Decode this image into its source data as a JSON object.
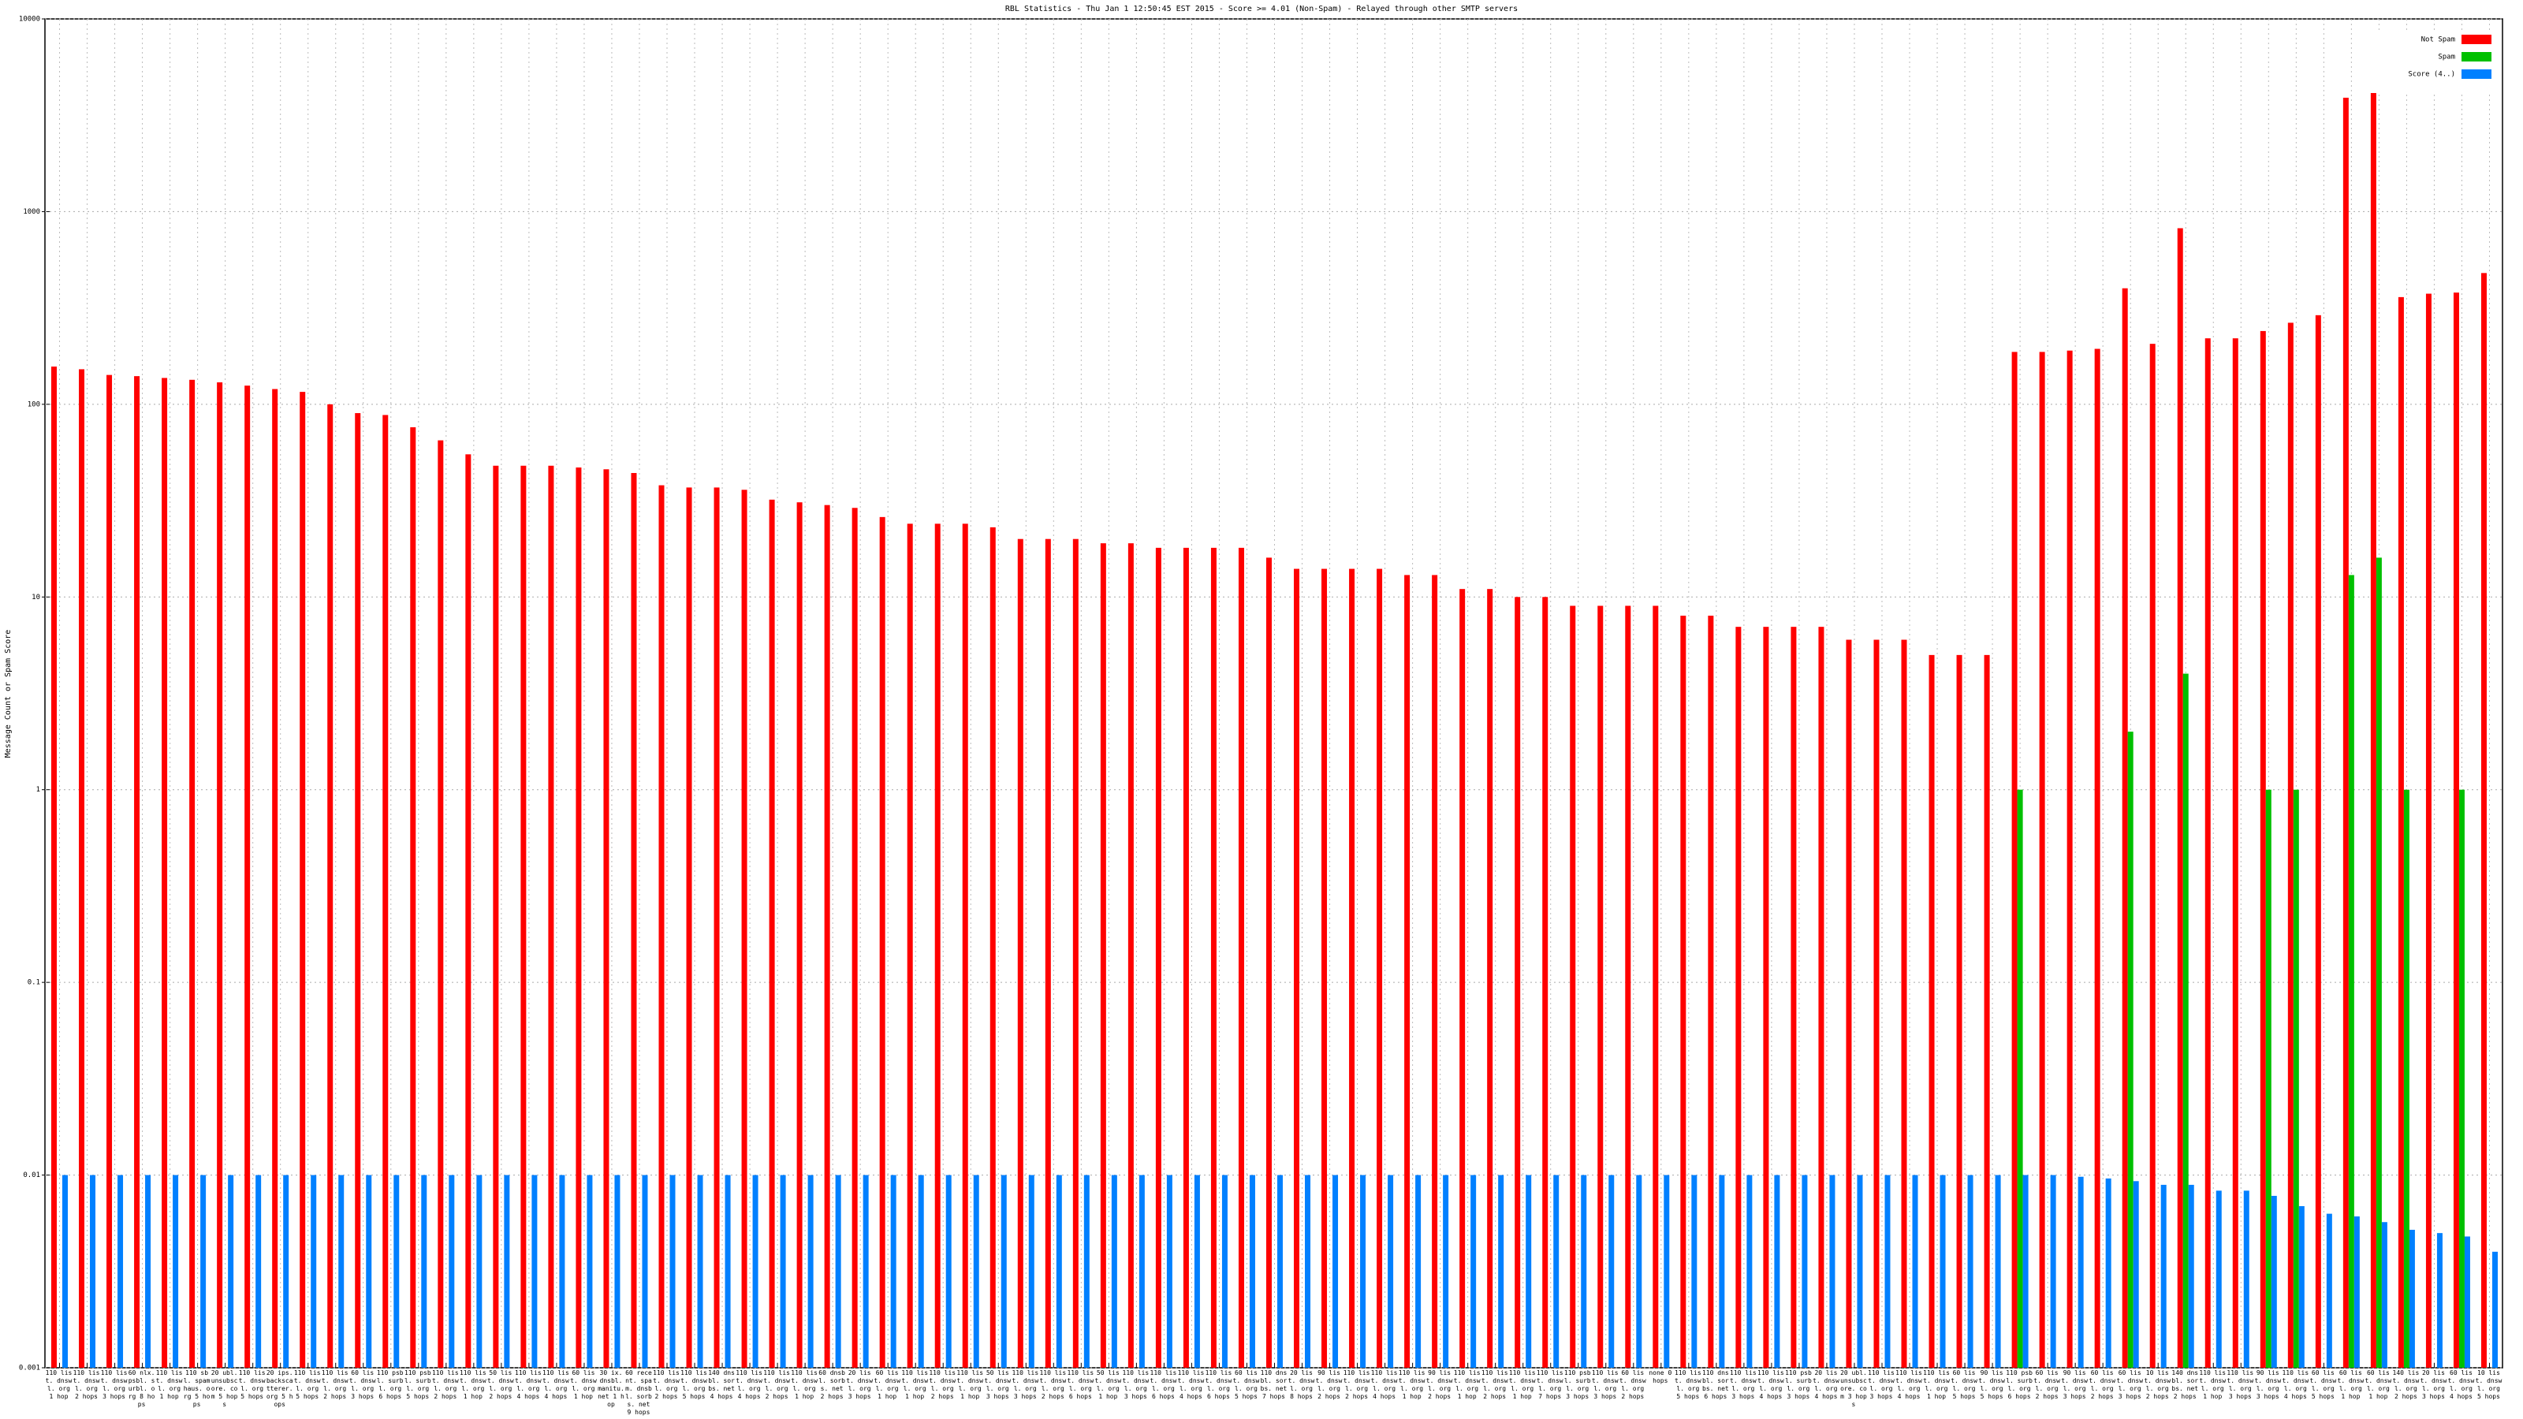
{
  "chart_data": {
    "type": "bar",
    "title": "RBL Statistics - Thu Jan  1 12:50:45 EST 2015 - Score >= 4.01 (Non-Spam) - Relayed through other SMTP servers",
    "y_label": "Message Count or Spam Score",
    "log": true,
    "grid": true,
    "legend": "top-right",
    "ylim": [
      0.001,
      10000
    ],
    "yticks": [
      0.001,
      0.01,
      0.1,
      1,
      10,
      100,
      1000,
      10000
    ],
    "categories": [
      "110 list. dnswl. org 1 hop",
      "110 list. dnswl. org 2 hops",
      "110 list. dnswl. org 3 hops",
      "60 nlx. psbl. surbl. org 8 hops",
      "110 list. dnswl. org 1 hop",
      "110 sbl. spamhaus. org 5 hops",
      "20 ubl. unsubscore. com 5 hops",
      "110 list. dnswl. org 5 hops",
      "20 ips. backscatterer. org 5 hops",
      "110 list. dnswl. org 5 hops",
      "110 list. dnswl. org 2 hops",
      "60 list. dnswl. org 3 hops",
      "110 psbl. surbl. org 6 hops",
      "110 psbl. surbl. org 5 hops",
      "110 list. dnswl. org 2 hops",
      "110 list. dnswl. org 1 hop",
      "50 list. dnswl. org 2 hops",
      "110 list. dnswl. org 4 hops",
      "110 list. dnswl. org 4 hops",
      "60 list. dnswl. org 1 hop",
      "30 ix. dnsbl. manitu. net 1 hop",
      "60 recent. spam. dnsbl. sorbs. net 9 hops",
      "110 list. dnswl. org 2 hops",
      "110 list. dnswl. org 5 hops",
      "140 dnsbl. sorbs. net 4 hops",
      "110 list. dnswl. org 4 hops",
      "110 list. dnswl. org 2 hops",
      "110 list. dnswl. org 1 hop",
      "60 dnsbl. sorbs. net 2 hops",
      "20 list. dnswl. org 3 hops",
      "60 list. dnswl. org 1 hop",
      "110 list. dnswl. org 1 hop",
      "110 list. dnswl. org 2 hops",
      "110 list. dnswl. org 1 hop",
      "50 list. dnswl. org 3 hops",
      "110 list. dnswl. org 3 hops",
      "110 list. dnswl. org 2 hops",
      "110 list. dnswl. org 6 hops",
      "50 list. dnswl. org 1 hop",
      "110 list. dnswl. org 3 hops",
      "110 list. dnswl. org 6 hops",
      "110 list. dnswl. org 4 hops",
      "110 list. dnswl. org 6 hops",
      "60 list. dnswl. org 5 hops",
      "110 dnsbl. sorbs. net 7 hops",
      "20 list. dnswl. org 8 hops",
      "90 list. dnswl. org 2 hops",
      "110 list. dnswl. org 2 hops",
      "110 list. dnswl. org 4 hops",
      "110 list. dnswl. org 1 hop",
      "90 list. dnswl. org 2 hops",
      "110 list. dnswl. org 1 hop",
      "110 list. dnswl. org 2 hops",
      "110 list. dnswl. org 1 hop",
      "110 list. dnswl. org 7 hops",
      "110 psbl. surbl. org 3 hops",
      "110 list. dnswl. org 3 hops",
      "60 list. dnswl. org 2 hops",
      "none 0 hops",
      "110 list. dnswl. org 5 hops",
      "110 dnsbl. sorbs. net 6 hops",
      "110 list. dnswl. org 3 hops",
      "110 list. dnswl. org 4 hops",
      "110 psbl. surbl. org 3 hops",
      "20 list. dnswl. org 4 hops",
      "20 ubl. unsubscore. com 3 hops",
      "110 list. dnswl. org 3 hops",
      "110 list. dnswl. org 4 hops",
      "110 list. dnswl. org 1 hop",
      "60 list. dnswl. org 5 hops",
      "90 list. dnswl. org 5 hops",
      "110 psbl. surbl. org 6 hops",
      "60 list. dnswl. org 2 hops",
      "90 list. dnswl. org 3 hops",
      "60 list. dnswl. org 2 hops",
      "60 list. dnswl. org 3 hops",
      "10 list. dnswl. org 2 hops",
      "140 dnsbl. sorbs. net 2 hops",
      "110 list. dnswl. org 1 hop",
      "110 list. dnswl. org 3 hops",
      "90 list. dnswl. org 3 hops",
      "110 list. dnswl. org 4 hops",
      "60 list. dnswl. org 5 hops",
      "60 list. dnswl. org 1 hop",
      "60 list. dnswl. org 1 hop",
      "140 list. dnswl. org 2 hops",
      "20 list. dnswl. org 3 hops",
      "60 list. dnswl. org 4 hops",
      "10 list. dnswl. org 5 hops"
    ],
    "series": [
      {
        "name": "Not Spam",
        "color": "#ff0000",
        "values": [
          157,
          152,
          142,
          140,
          137,
          134,
          130,
          125,
          120,
          116,
          100,
          90,
          88,
          76,
          65,
          55,
          48,
          48,
          48,
          47,
          46,
          44,
          38,
          37,
          37,
          36,
          32,
          31,
          30,
          29,
          26,
          24,
          24,
          24,
          23,
          20,
          20,
          20,
          19,
          19,
          18,
          18,
          18,
          18,
          16,
          14,
          14,
          14,
          14,
          13,
          13,
          11,
          11,
          10,
          10,
          9,
          9,
          9,
          9,
          8,
          8,
          7,
          7,
          7,
          7,
          6,
          6,
          6,
          5,
          5,
          5,
          187,
          187,
          190,
          194,
          400,
          206,
          820,
          220,
          220,
          240,
          265,
          290,
          3900,
          5300,
          360,
          375,
          380,
          480
        ]
      },
      {
        "name": "Spam",
        "color": "#00c000",
        "values": [
          null,
          null,
          null,
          null,
          null,
          null,
          null,
          null,
          null,
          null,
          null,
          null,
          null,
          null,
          null,
          null,
          null,
          null,
          null,
          null,
          null,
          null,
          null,
          null,
          null,
          null,
          null,
          null,
          null,
          null,
          null,
          null,
          null,
          null,
          null,
          null,
          null,
          null,
          null,
          null,
          null,
          null,
          null,
          null,
          null,
          null,
          null,
          null,
          null,
          null,
          null,
          null,
          null,
          null,
          null,
          null,
          null,
          null,
          null,
          null,
          null,
          null,
          null,
          null,
          null,
          null,
          null,
          null,
          null,
          null,
          null,
          1,
          null,
          null,
          null,
          2,
          null,
          4,
          null,
          null,
          1,
          1,
          null,
          13,
          16,
          1,
          null,
          1,
          null
        ]
      },
      {
        "name": "Score (4..)",
        "color": "#0080ff",
        "values": [
          0.01,
          0.01,
          0.01,
          0.01,
          0.01,
          0.01,
          0.01,
          0.01,
          0.01,
          0.01,
          0.01,
          0.01,
          0.01,
          0.01,
          0.01,
          0.01,
          0.01,
          0.01,
          0.01,
          0.01,
          0.01,
          0.01,
          0.01,
          0.01,
          0.01,
          0.01,
          0.01,
          0.01,
          0.01,
          0.01,
          0.01,
          0.01,
          0.01,
          0.01,
          0.01,
          0.01,
          0.01,
          0.01,
          0.01,
          0.01,
          0.01,
          0.01,
          0.01,
          0.01,
          0.01,
          0.01,
          0.01,
          0.01,
          0.01,
          0.01,
          0.01,
          0.01,
          0.01,
          0.01,
          0.01,
          0.01,
          0.01,
          0.01,
          0.01,
          0.01,
          0.01,
          0.01,
          0.01,
          0.01,
          0.01,
          0.01,
          0.01,
          0.01,
          0.01,
          0.01,
          0.01,
          0.01,
          0.01,
          0.0098,
          0.0096,
          0.0093,
          0.0089,
          0.0089,
          0.0083,
          0.0083,
          0.0078,
          0.0069,
          0.0063,
          0.0061,
          0.0057,
          0.0052,
          0.005,
          0.0048,
          0.004
        ]
      }
    ]
  }
}
